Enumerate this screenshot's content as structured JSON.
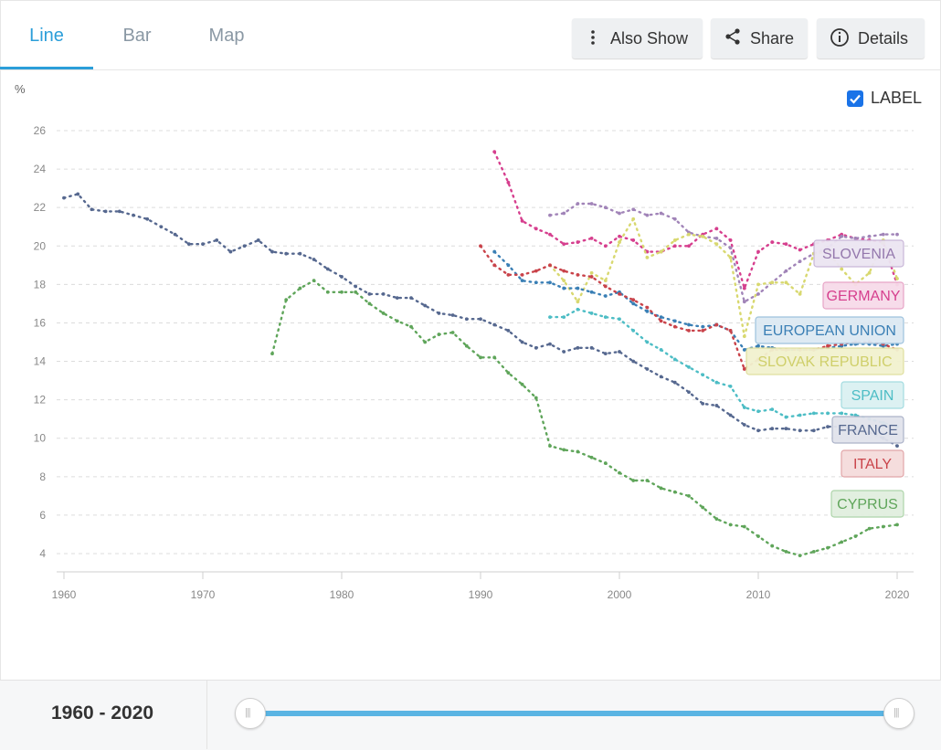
{
  "tabs": [
    {
      "label": "Line",
      "active": true
    },
    {
      "label": "Bar",
      "active": false
    },
    {
      "label": "Map",
      "active": false
    }
  ],
  "toolbar": {
    "also_show_label": "Also Show",
    "share_label": "Share",
    "details_label": "Details"
  },
  "label_toggle": {
    "text": "LABEL",
    "checked": true
  },
  "slider": {
    "range_text": "1960 - 2020",
    "min_year": 1960,
    "max_year": 2020
  },
  "chart_data": {
    "type": "line",
    "ylabel": "%",
    "xlim": [
      1960,
      2020
    ],
    "ylim": [
      3,
      27
    ],
    "xticks": [
      "1960",
      "1970",
      "1980",
      "1990",
      "2000",
      "2010",
      "2020"
    ],
    "yticks": [
      "4",
      "6",
      "8",
      "10",
      "12",
      "14",
      "16",
      "18",
      "20",
      "22",
      "24",
      "26"
    ],
    "grid": true,
    "series": [
      {
        "name": "FRANCE",
        "color": "#56688f",
        "x": [
          1960,
          1961,
          1962,
          1963,
          1964,
          1965,
          1966,
          1967,
          1968,
          1969,
          1970,
          1971,
          1972,
          1973,
          1974,
          1975,
          1976,
          1977,
          1978,
          1979,
          1980,
          1981,
          1982,
          1983,
          1984,
          1985,
          1986,
          1987,
          1988,
          1989,
          1990,
          1991,
          1992,
          1993,
          1994,
          1995,
          1996,
          1997,
          1998,
          1999,
          2000,
          2001,
          2002,
          2003,
          2004,
          2005,
          2006,
          2007,
          2008,
          2009,
          2010,
          2011,
          2012,
          2013,
          2014,
          2015,
          2016,
          2017,
          2018,
          2019,
          2020
        ],
        "y": [
          22.5,
          22.7,
          21.9,
          21.8,
          21.8,
          21.6,
          21.4,
          21.0,
          20.6,
          20.1,
          20.1,
          20.3,
          19.7,
          20.0,
          20.3,
          19.7,
          19.6,
          19.6,
          19.3,
          18.8,
          18.4,
          17.9,
          17.5,
          17.5,
          17.3,
          17.3,
          16.9,
          16.5,
          16.4,
          16.2,
          16.2,
          15.9,
          15.6,
          15.0,
          14.7,
          14.9,
          14.5,
          14.7,
          14.7,
          14.4,
          14.5,
          14.0,
          13.6,
          13.2,
          12.9,
          12.4,
          11.8,
          11.7,
          11.2,
          10.7,
          10.4,
          10.5,
          10.5,
          10.4,
          10.4,
          10.6,
          10.6,
          10.4,
          10.3,
          10.0,
          9.6
        ]
      },
      {
        "name": "CYPRUS",
        "color": "#5fa55a",
        "x": [
          1975,
          1976,
          1977,
          1978,
          1979,
          1980,
          1981,
          1982,
          1983,
          1984,
          1985,
          1986,
          1987,
          1988,
          1989,
          1990,
          1991,
          1992,
          1993,
          1994,
          1995,
          1996,
          1997,
          1998,
          1999,
          2000,
          2001,
          2002,
          2003,
          2004,
          2005,
          2006,
          2007,
          2008,
          2009,
          2010,
          2011,
          2012,
          2013,
          2014,
          2015,
          2016,
          2017,
          2018,
          2019,
          2020
        ],
        "y": [
          14.4,
          17.2,
          17.8,
          18.2,
          17.6,
          17.6,
          17.6,
          17.0,
          16.5,
          16.1,
          15.8,
          15.0,
          15.4,
          15.5,
          14.8,
          14.2,
          14.2,
          13.4,
          12.8,
          12.1,
          9.6,
          9.4,
          9.3,
          9.0,
          8.7,
          8.2,
          7.8,
          7.8,
          7.4,
          7.2,
          7.0,
          6.4,
          5.8,
          5.5,
          5.4,
          4.9,
          4.4,
          4.1,
          3.9,
          4.1,
          4.3,
          4.6,
          4.9,
          5.3,
          5.4,
          5.5
        ]
      },
      {
        "name": "GERMANY",
        "color": "#d63f8e",
        "x": [
          1991,
          1992,
          1993,
          1994,
          1995,
          1996,
          1997,
          1998,
          1999,
          2000,
          2001,
          2002,
          2003,
          2004,
          2005,
          2006,
          2007,
          2008,
          2009,
          2010,
          2011,
          2012,
          2013,
          2014,
          2015,
          2016,
          2017,
          2018,
          2019,
          2020
        ],
        "y": [
          24.9,
          23.3,
          21.3,
          20.9,
          20.6,
          20.1,
          20.2,
          20.4,
          20.0,
          20.5,
          20.3,
          19.7,
          19.7,
          20.0,
          20.0,
          20.6,
          20.9,
          20.3,
          17.8,
          19.7,
          20.2,
          20.1,
          19.8,
          20.1,
          20.3,
          20.6,
          20.4,
          20.3,
          20.2,
          18.0
        ]
      },
      {
        "name": "SLOVENIA",
        "color": "#a184b8",
        "x": [
          1995,
          1996,
          1997,
          1998,
          1999,
          2000,
          2001,
          2002,
          2003,
          2004,
          2005,
          2006,
          2007,
          2008,
          2009,
          2010,
          2011,
          2012,
          2013,
          2014,
          2015,
          2016,
          2017,
          2018,
          2019,
          2020
        ],
        "y": [
          21.6,
          21.7,
          22.2,
          22.2,
          22.0,
          21.7,
          21.9,
          21.6,
          21.7,
          21.4,
          20.7,
          20.5,
          20.4,
          19.9,
          17.1,
          17.5,
          18.1,
          18.7,
          19.2,
          19.6,
          19.9,
          20.5,
          20.4,
          20.5,
          20.6,
          20.6
        ]
      },
      {
        "name": "SLOVAK REPUBLIC",
        "color": "#d8d86f",
        "x": [
          1995,
          1996,
          1997,
          1998,
          1999,
          2000,
          2001,
          2002,
          2003,
          2004,
          2005,
          2006,
          2007,
          2008,
          2009,
          2010,
          2011,
          2012,
          2013,
          2014,
          2015,
          2016,
          2017,
          2018,
          2019,
          2020
        ],
        "y": [
          19.0,
          18.2,
          17.1,
          18.6,
          18.2,
          20.2,
          21.4,
          19.4,
          19.7,
          20.3,
          20.6,
          20.5,
          20.1,
          19.4,
          15.3,
          18.0,
          18.1,
          18.1,
          17.5,
          19.6,
          19.7,
          18.8,
          18.0,
          18.6,
          20.3,
          18.3
        ]
      },
      {
        "name": "EUROPEAN UNION",
        "color": "#3a7fb5",
        "x": [
          1991,
          1992,
          1993,
          1994,
          1995,
          1996,
          1997,
          1998,
          1999,
          2000,
          2001,
          2002,
          2003,
          2004,
          2005,
          2006,
          2007,
          2008,
          2009,
          2010,
          2011,
          2012,
          2013,
          2014,
          2015,
          2016,
          2017,
          2018,
          2019,
          2020
        ],
        "y": [
          19.7,
          19.0,
          18.2,
          18.1,
          18.1,
          17.8,
          17.8,
          17.6,
          17.4,
          17.6,
          17.0,
          16.6,
          16.3,
          16.1,
          15.9,
          15.8,
          15.9,
          15.6,
          14.6,
          14.8,
          14.7,
          14.6,
          14.6,
          14.6,
          14.7,
          14.8,
          14.9,
          14.9,
          14.8,
          14.9
        ]
      },
      {
        "name": "SPAIN",
        "color": "#4dbdc5",
        "x": [
          1995,
          1996,
          1997,
          1998,
          1999,
          2000,
          2001,
          2002,
          2003,
          2004,
          2005,
          2006,
          2007,
          2008,
          2009,
          2010,
          2011,
          2012,
          2013,
          2014,
          2015,
          2016,
          2017,
          2018,
          2019,
          2020
        ],
        "y": [
          16.3,
          16.3,
          16.7,
          16.5,
          16.3,
          16.2,
          15.6,
          15.0,
          14.6,
          14.1,
          13.7,
          13.3,
          12.9,
          12.7,
          11.6,
          11.4,
          11.5,
          11.1,
          11.2,
          11.3,
          11.3,
          11.3,
          11.2,
          11.0,
          10.8,
          10.6
        ]
      },
      {
        "name": "ITALY",
        "color": "#c9434a",
        "x": [
          1990,
          1991,
          1992,
          1993,
          1994,
          1995,
          1996,
          1997,
          1998,
          1999,
          2000,
          2001,
          2002,
          2003,
          2004,
          2005,
          2006,
          2007,
          2008,
          2009,
          2010,
          2011,
          2012,
          2013,
          2014,
          2015,
          2016,
          2017,
          2018,
          2019,
          2020
        ],
        "y": [
          20.0,
          19.0,
          18.5,
          18.5,
          18.7,
          19.0,
          18.7,
          18.5,
          18.4,
          17.9,
          17.5,
          17.2,
          16.8,
          16.1,
          15.8,
          15.6,
          15.6,
          15.9,
          15.6,
          13.6,
          14.1,
          14.6,
          14.6,
          14.6,
          14.6,
          14.8,
          14.9,
          15.0,
          15.0,
          14.9,
          14.6
        ]
      }
    ],
    "legend_labels": [
      "SLOVENIA",
      "GERMANY",
      "EUROPEAN UNION",
      "SLOVAK REPUBLIC",
      "SPAIN",
      "FRANCE",
      "ITALY",
      "CYPRUS"
    ]
  }
}
